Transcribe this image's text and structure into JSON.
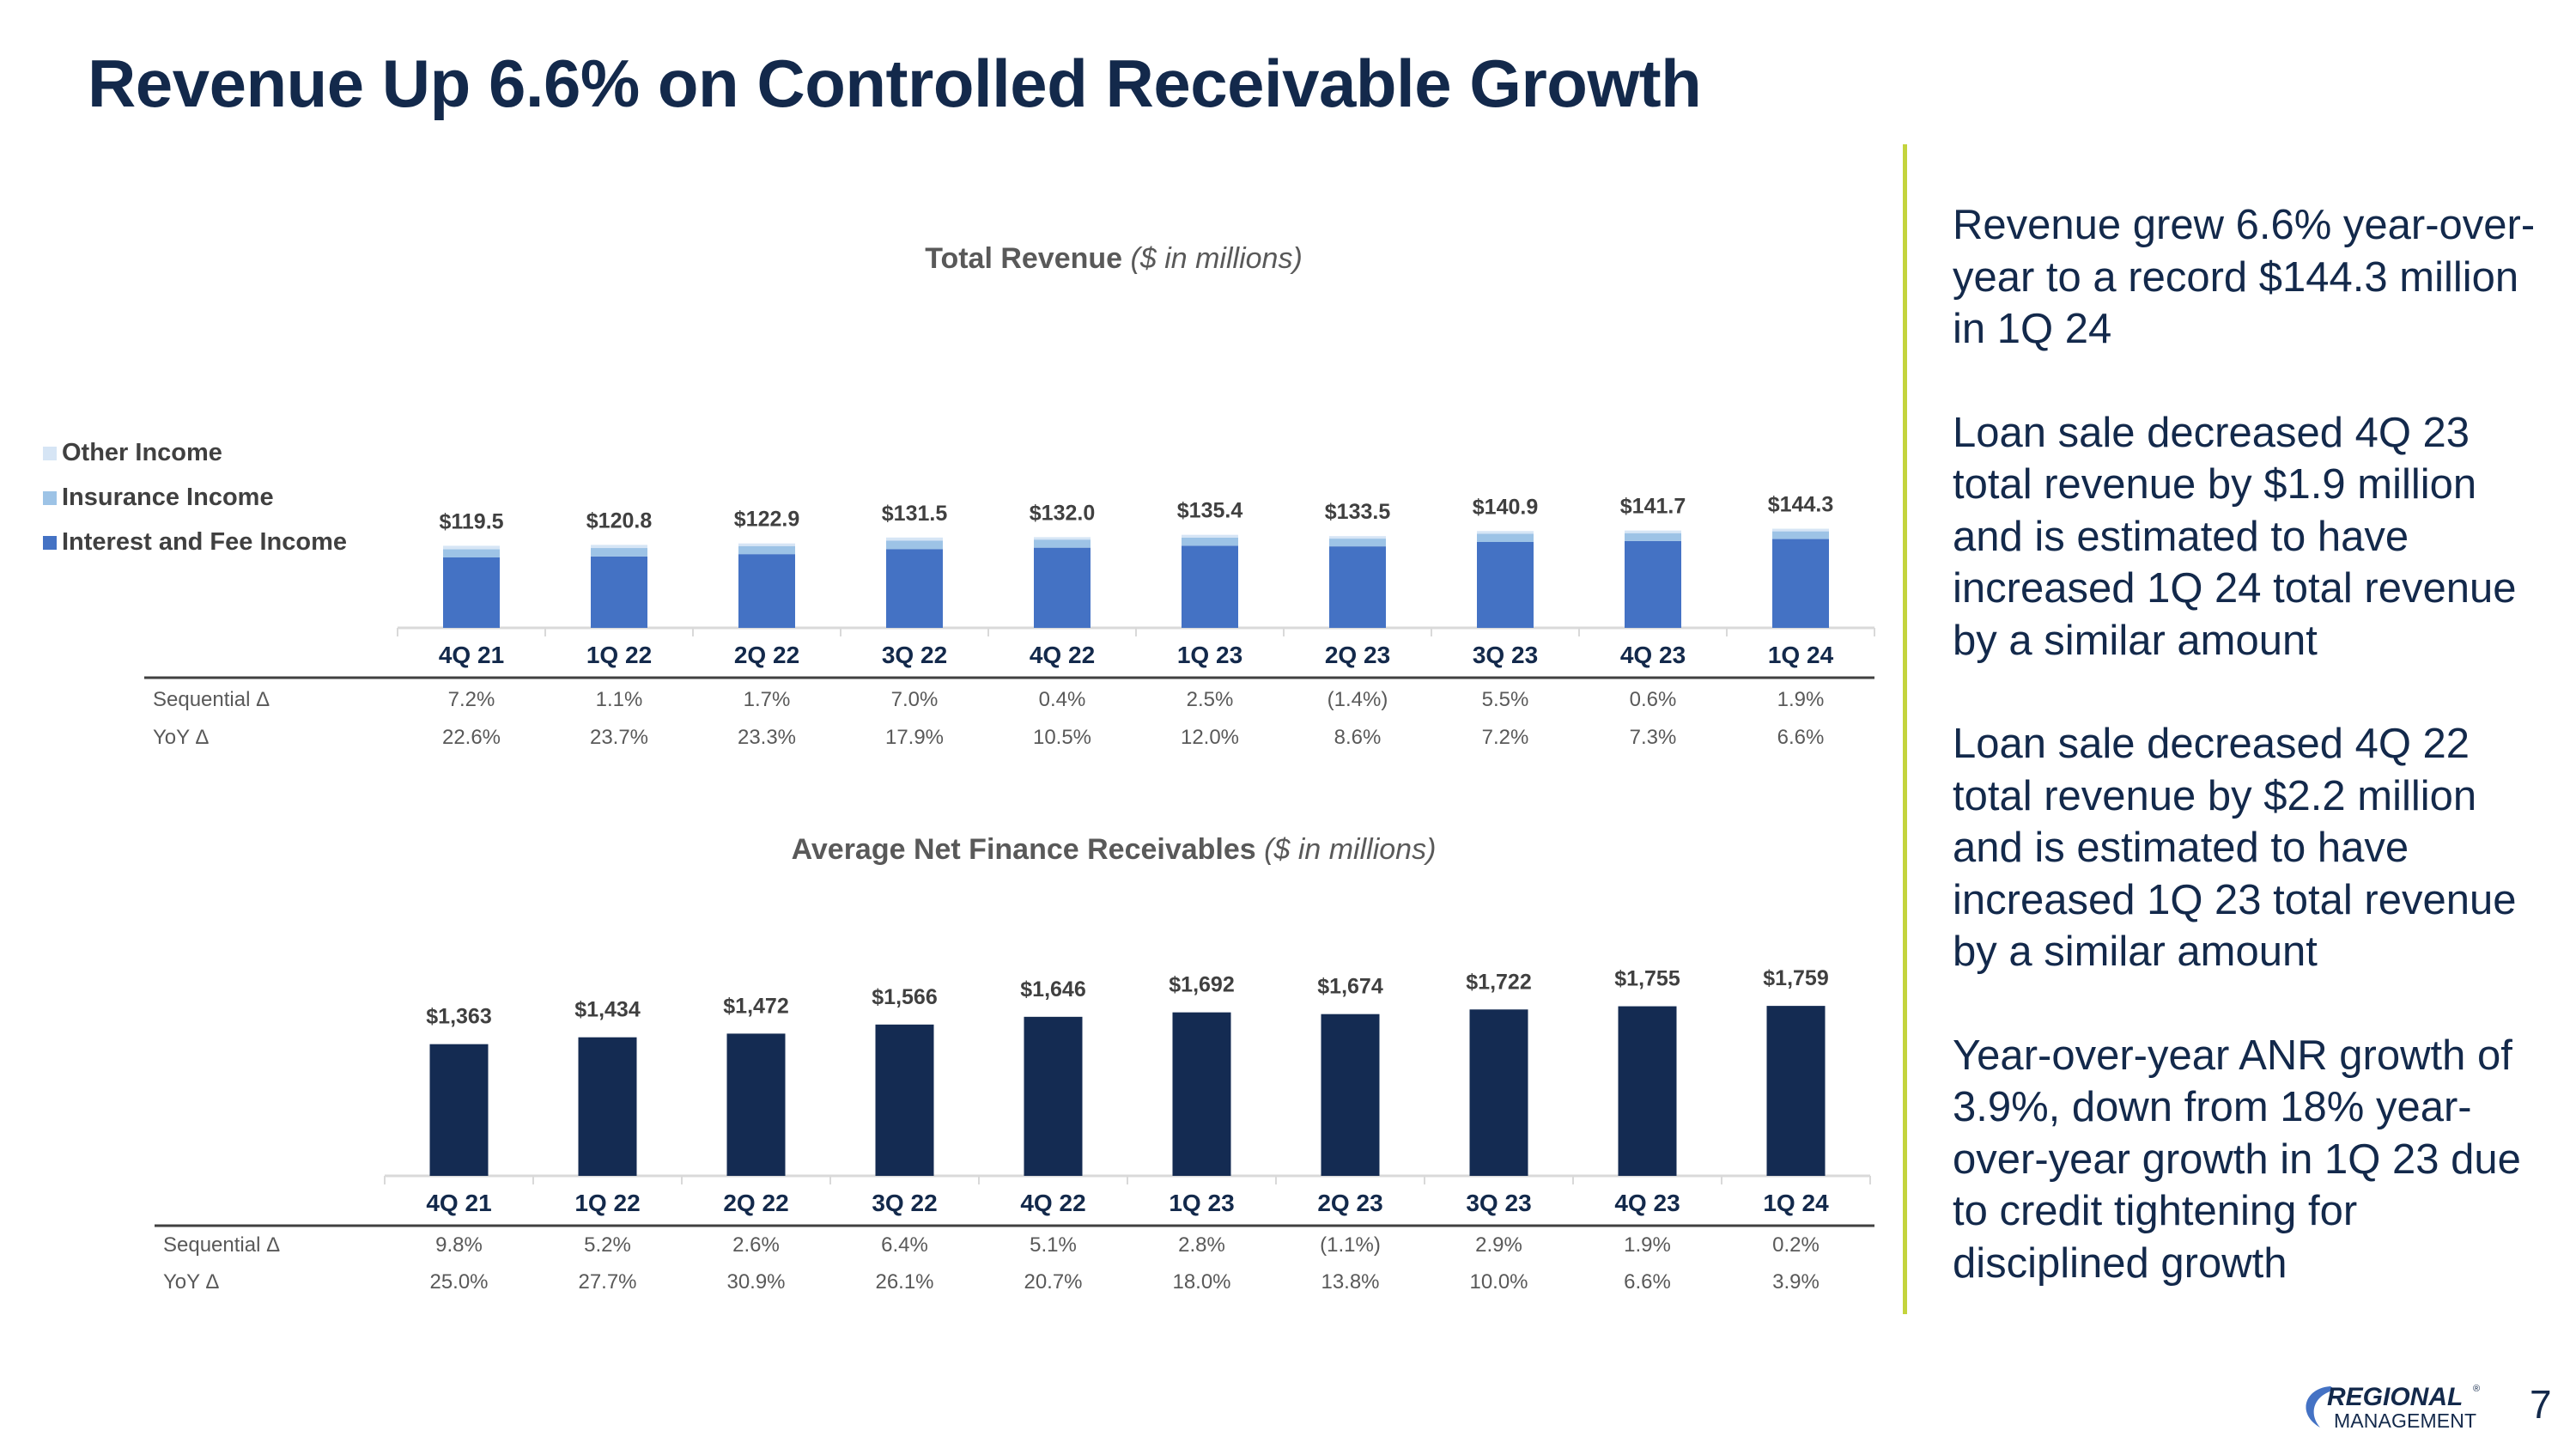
{
  "slide": {
    "title": "Revenue Up 6.6% on Controlled Receivable Growth",
    "page_number": "7",
    "logo": {
      "line1": "REGIONAL",
      "line2": "MANAGEMENT",
      "trademark": "®"
    },
    "bullets": [
      "Revenue grew 6.6% year-over-year to a record $144.3 million in 1Q 24",
      "Loan sale decreased 4Q 23 total revenue by $1.9 million and is estimated to have increased 1Q 24 total revenue by a similar amount",
      "Loan sale decreased 4Q 22 total revenue by $2.2 million and is estimated to have increased 1Q 23 total revenue by a similar amount",
      "Year-over-year ANR growth of 3.9%, down from 18% year-over-year growth in 1Q 23 due to credit tightening for disciplined growth"
    ]
  },
  "colors": {
    "title": "#13294b",
    "interest_fee": "#4472c4",
    "insurance": "#9dc3e6",
    "other": "#d6e5f5",
    "anr_bar": "#142b52",
    "accent_divider": "#c4d43c",
    "axis": "#d9d9d9",
    "muted_text": "#595959"
  },
  "chart_data": [
    {
      "type": "bar",
      "stacked": true,
      "title": "Total Revenue",
      "subtitle": "($ in millions)",
      "categories": [
        "4Q 21",
        "1Q 22",
        "2Q 22",
        "3Q 22",
        "4Q 22",
        "1Q 23",
        "2Q 23",
        "3Q 23",
        "4Q 23",
        "1Q 24"
      ],
      "series": [
        {
          "name": "Interest and Fee Income",
          "values": [
            102.5,
            104.0,
            107.3,
            114.7,
            116.7,
            119.6,
            118.6,
            125.0,
            126.4,
            129.3
          ]
        },
        {
          "name": "Insurance Income",
          "values": [
            12.0,
            12.2,
            11.8,
            12.2,
            11.8,
            11.7,
            11.3,
            11.9,
            11.5,
            11.2
          ]
        },
        {
          "name": "Other Income",
          "values": [
            5.0,
            4.6,
            3.8,
            4.6,
            3.5,
            4.1,
            3.6,
            4.0,
            3.8,
            3.8
          ]
        }
      ],
      "totals": [
        119.5,
        120.8,
        122.9,
        131.5,
        132.0,
        135.4,
        133.5,
        140.9,
        141.7,
        144.3
      ],
      "total_labels": [
        "$119.5",
        "$120.8",
        "$122.9",
        "$131.5",
        "$132.0",
        "$135.4",
        "$133.5",
        "$140.9",
        "$141.7",
        "$144.3"
      ],
      "legend_order": [
        "Other Income",
        "Insurance Income",
        "Interest and Fee Income"
      ],
      "legend_position": "left",
      "rows": [
        {
          "label": "Sequential Δ",
          "values": [
            "7.2%",
            "1.1%",
            "1.7%",
            "7.0%",
            "0.4%",
            "2.5%",
            "(1.4%)",
            "5.5%",
            "0.6%",
            "1.9%"
          ]
        },
        {
          "label": "YoY Δ",
          "values": [
            "22.6%",
            "23.7%",
            "23.3%",
            "17.9%",
            "10.5%",
            "12.0%",
            "8.6%",
            "7.2%",
            "7.3%",
            "6.6%"
          ]
        }
      ]
    },
    {
      "type": "bar",
      "title": "Average Net Finance Receivables",
      "subtitle": "($ in millions)",
      "categories": [
        "4Q 21",
        "1Q 22",
        "2Q 22",
        "3Q 22",
        "4Q 22",
        "1Q 23",
        "2Q 23",
        "3Q 23",
        "4Q 23",
        "1Q 24"
      ],
      "values": [
        1363,
        1434,
        1472,
        1566,
        1646,
        1692,
        1674,
        1722,
        1755,
        1759
      ],
      "value_labels": [
        "$1,363",
        "$1,434",
        "$1,472",
        "$1,566",
        "$1,646",
        "$1,692",
        "$1,674",
        "$1,722",
        "$1,755",
        "$1,759"
      ],
      "rows": [
        {
          "label": "Sequential Δ",
          "values": [
            "9.8%",
            "5.2%",
            "2.6%",
            "6.4%",
            "5.1%",
            "2.8%",
            "(1.1%)",
            "2.9%",
            "1.9%",
            "0.2%"
          ]
        },
        {
          "label": "YoY Δ",
          "values": [
            "25.0%",
            "27.7%",
            "30.9%",
            "26.1%",
            "20.7%",
            "18.0%",
            "13.8%",
            "10.0%",
            "6.6%",
            "3.9%"
          ]
        }
      ]
    }
  ]
}
